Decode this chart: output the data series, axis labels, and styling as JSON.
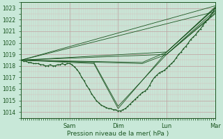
{
  "xlabel": "Pression niveau de la mer( hPa )",
  "bg_color": "#c8e8d8",
  "grid_color_minor": "#d4b8b8",
  "grid_color_major": "#c0a0a0",
  "line_color": "#1a5520",
  "ylim": [
    1013.5,
    1023.5
  ],
  "yticks": [
    1014,
    1015,
    1016,
    1017,
    1018,
    1019,
    1020,
    1021,
    1022,
    1023
  ],
  "xlim": [
    0.0,
    4.0
  ],
  "day_ticks": [
    1.0,
    2.0,
    3.0,
    4.0
  ],
  "day_labels": [
    "Sam",
    "Dim",
    "Lun",
    "Mar"
  ],
  "main_x": [
    0.0,
    0.05,
    0.1,
    0.15,
    0.2,
    0.25,
    0.3,
    0.35,
    0.4,
    0.45,
    0.5,
    0.55,
    0.6,
    0.65,
    0.7,
    0.75,
    0.8,
    0.85,
    0.9,
    0.95,
    1.0,
    1.05,
    1.1,
    1.15,
    1.2,
    1.25,
    1.3,
    1.35,
    1.4,
    1.45,
    1.5,
    1.55,
    1.6,
    1.65,
    1.7,
    1.75,
    1.8,
    1.85,
    1.9,
    1.95,
    2.0,
    2.05,
    2.1,
    2.15,
    2.2,
    2.25,
    2.3,
    2.35,
    2.4,
    2.45,
    2.5,
    2.55,
    2.6,
    2.65,
    2.7,
    2.75,
    2.8,
    2.85,
    2.9,
    2.95,
    3.0,
    3.05,
    3.1,
    3.15,
    3.2,
    3.25,
    3.3,
    3.35,
    3.4,
    3.45,
    3.5,
    3.55,
    3.6,
    3.65,
    3.7,
    3.75,
    3.8,
    3.85,
    3.9,
    3.95,
    4.0
  ],
  "main_y": [
    1018.5,
    1018.4,
    1018.4,
    1018.3,
    1018.3,
    1018.2,
    1018.2,
    1018.2,
    1018.1,
    1018.1,
    1018.0,
    1018.0,
    1018.1,
    1018.0,
    1018.0,
    1018.1,
    1018.1,
    1018.2,
    1018.1,
    1018.2,
    1018.2,
    1018.1,
    1017.9,
    1017.7,
    1017.4,
    1017.0,
    1016.7,
    1016.3,
    1016.0,
    1015.6,
    1015.3,
    1015.0,
    1014.8,
    1014.6,
    1014.5,
    1014.4,
    1014.3,
    1014.3,
    1014.2,
    1014.2,
    1014.1,
    1014.1,
    1014.2,
    1014.3,
    1014.5,
    1014.7,
    1014.9,
    1015.1,
    1015.3,
    1015.5,
    1015.7,
    1015.8,
    1016.0,
    1016.3,
    1016.7,
    1017.0,
    1017.2,
    1017.4,
    1017.5,
    1017.6,
    1017.8,
    1018.0,
    1018.2,
    1018.4,
    1018.7,
    1019.0,
    1019.2,
    1019.5,
    1019.7,
    1020.0,
    1020.3,
    1020.5,
    1020.7,
    1021.0,
    1021.2,
    1021.5,
    1021.8,
    1022.0,
    1022.3,
    1022.6,
    1023.0
  ],
  "ensemble_lines": [
    {
      "x": [
        0.0,
        4.0
      ],
      "y": [
        1018.5,
        1023.2
      ]
    },
    {
      "x": [
        0.0,
        4.0
      ],
      "y": [
        1018.5,
        1022.7
      ]
    },
    {
      "x": [
        0.0,
        3.0,
        4.0
      ],
      "y": [
        1018.5,
        1019.2,
        1023.0
      ]
    },
    {
      "x": [
        0.0,
        3.0,
        4.0
      ],
      "y": [
        1018.5,
        1019.0,
        1022.5
      ]
    },
    {
      "x": [
        0.0,
        2.5,
        3.0,
        4.0
      ],
      "y": [
        1018.5,
        1018.3,
        1019.2,
        1023.0
      ]
    },
    {
      "x": [
        0.0,
        2.5,
        3.0,
        4.0
      ],
      "y": [
        1018.5,
        1018.2,
        1019.0,
        1022.6
      ]
    },
    {
      "x": [
        0.0,
        1.5,
        2.0,
        3.0,
        4.0
      ],
      "y": [
        1018.5,
        1018.3,
        1014.5,
        1019.0,
        1022.8
      ]
    },
    {
      "x": [
        0.0,
        1.5,
        2.0,
        3.0,
        4.0
      ],
      "y": [
        1018.5,
        1018.2,
        1014.3,
        1019.2,
        1023.1
      ]
    }
  ]
}
